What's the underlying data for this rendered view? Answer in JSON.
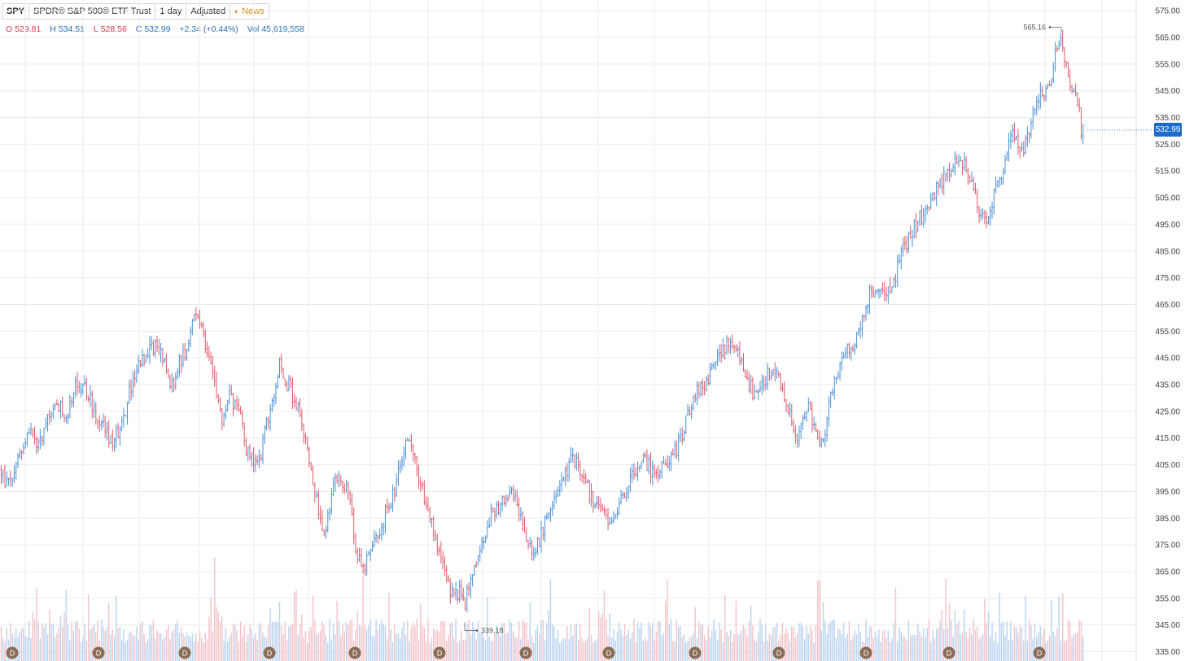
{
  "header": {
    "symbol": "SPY",
    "name": "SPDR® S&P 500® ETF Trust",
    "interval": "1 day",
    "adjust": "Adjusted",
    "news": "News"
  },
  "ohlc": {
    "o_label": "O",
    "o": "529.81",
    "h_label": "H",
    "h": "534.51",
    "l_label": "L",
    "l": "528.56",
    "c_label": "C",
    "c": "532.99",
    "change": "+2.34 (+0.44%)",
    "vol_label": "Vol",
    "vol": "45,619,558"
  },
  "colors": {
    "up": "#4a90d9",
    "down": "#e05a6a",
    "up_vol": "#b9d3f0",
    "down_vol": "#f4c2c8",
    "grid": "#ebebeb",
    "accent": "#1a6dcc"
  },
  "chart_data": {
    "type": "ohlc",
    "y_ticks": [
      575,
      565,
      555,
      545,
      535,
      525,
      515,
      505,
      495,
      485,
      475,
      465,
      455,
      445,
      435,
      425,
      415,
      405,
      395,
      385,
      375,
      365,
      355,
      345,
      335
    ],
    "y_tick_labels": [
      "575.00",
      "565.00",
      "555.00",
      "545.00",
      "535.00",
      "525.00",
      "515.00",
      "505.00",
      "495.00",
      "485.00",
      "475.00",
      "465.00",
      "455.00",
      "445.00",
      "435.00",
      "425.00",
      "415.00",
      "405.00",
      "395.00",
      "385.00",
      "375.00",
      "365.00",
      "355.00",
      "345.00",
      "335.00"
    ],
    "ylim": [
      331.5,
      579
    ],
    "last_price": "532.99",
    "high_note": "565.16",
    "low_note": "339.18",
    "event_marker": "D",
    "event_count": 13,
    "path": [
      [
        0,
        403
      ],
      [
        6,
        399
      ],
      [
        12,
        397
      ],
      [
        20,
        406
      ],
      [
        30,
        414
      ],
      [
        38,
        420
      ],
      [
        46,
        410
      ],
      [
        56,
        422
      ],
      [
        66,
        424
      ],
      [
        74,
        428
      ],
      [
        82,
        424
      ],
      [
        92,
        433
      ],
      [
        100,
        436
      ],
      [
        108,
        432
      ],
      [
        116,
        425
      ],
      [
        124,
        420
      ],
      [
        132,
        415
      ],
      [
        138,
        414
      ],
      [
        146,
        418
      ],
      [
        152,
        423
      ],
      [
        160,
        433
      ],
      [
        168,
        440
      ],
      [
        176,
        446
      ],
      [
        186,
        450
      ],
      [
        196,
        447
      ],
      [
        204,
        440
      ],
      [
        210,
        434
      ],
      [
        218,
        441
      ],
      [
        226,
        447
      ],
      [
        234,
        455
      ],
      [
        240,
        461
      ],
      [
        246,
        458
      ],
      [
        254,
        448
      ],
      [
        262,
        440
      ],
      [
        268,
        428
      ],
      [
        274,
        420
      ],
      [
        282,
        430
      ],
      [
        290,
        426
      ],
      [
        298,
        420
      ],
      [
        304,
        409
      ],
      [
        312,
        405
      ],
      [
        320,
        408
      ],
      [
        328,
        420
      ],
      [
        336,
        432
      ],
      [
        344,
        444
      ],
      [
        352,
        436
      ],
      [
        360,
        430
      ],
      [
        366,
        427
      ],
      [
        372,
        418
      ],
      [
        378,
        408
      ],
      [
        386,
        398
      ],
      [
        392,
        388
      ],
      [
        398,
        380
      ],
      [
        404,
        386
      ],
      [
        410,
        398
      ],
      [
        418,
        402
      ],
      [
        426,
        396
      ],
      [
        432,
        386
      ],
      [
        438,
        372
      ],
      [
        446,
        366
      ],
      [
        454,
        372
      ],
      [
        462,
        376
      ],
      [
        470,
        384
      ],
      [
        478,
        390
      ],
      [
        486,
        398
      ],
      [
        494,
        405
      ],
      [
        500,
        415
      ],
      [
        506,
        410
      ],
      [
        512,
        404
      ],
      [
        518,
        398
      ],
      [
        524,
        390
      ],
      [
        530,
        384
      ],
      [
        536,
        376
      ],
      [
        542,
        372
      ],
      [
        548,
        362
      ],
      [
        556,
        356
      ],
      [
        564,
        358
      ],
      [
        570,
        352
      ],
      [
        578,
        360
      ],
      [
        586,
        368
      ],
      [
        594,
        376
      ],
      [
        602,
        386
      ],
      [
        610,
        389
      ],
      [
        618,
        391
      ],
      [
        626,
        395
      ],
      [
        632,
        392
      ],
      [
        638,
        388
      ],
      [
        646,
        379
      ],
      [
        654,
        372
      ],
      [
        662,
        376
      ],
      [
        670,
        384
      ],
      [
        678,
        388
      ],
      [
        686,
        394
      ],
      [
        694,
        401
      ],
      [
        702,
        408
      ],
      [
        710,
        405
      ],
      [
        718,
        399
      ],
      [
        726,
        393
      ],
      [
        734,
        390
      ],
      [
        742,
        386
      ],
      [
        750,
        384
      ],
      [
        758,
        388
      ],
      [
        766,
        393
      ],
      [
        774,
        400
      ],
      [
        782,
        404
      ],
      [
        790,
        406
      ],
      [
        798,
        404
      ],
      [
        806,
        401
      ],
      [
        814,
        404
      ],
      [
        822,
        407
      ],
      [
        830,
        410
      ],
      [
        838,
        416
      ],
      [
        846,
        424
      ],
      [
        852,
        430
      ],
      [
        860,
        433
      ],
      [
        868,
        436
      ],
      [
        876,
        440
      ],
      [
        884,
        446
      ],
      [
        892,
        450
      ],
      [
        900,
        450
      ],
      [
        908,
        446
      ],
      [
        914,
        440
      ],
      [
        920,
        436
      ],
      [
        926,
        431
      ],
      [
        932,
        434
      ],
      [
        940,
        438
      ],
      [
        946,
        440
      ],
      [
        954,
        438
      ],
      [
        962,
        434
      ],
      [
        968,
        426
      ],
      [
        974,
        420
      ],
      [
        980,
        416
      ],
      [
        986,
        420
      ],
      [
        994,
        428
      ],
      [
        1000,
        420
      ],
      [
        1006,
        410
      ],
      [
        1012,
        416
      ],
      [
        1018,
        426
      ],
      [
        1024,
        434
      ],
      [
        1030,
        442
      ],
      [
        1036,
        446
      ],
      [
        1044,
        448
      ],
      [
        1052,
        452
      ],
      [
        1058,
        456
      ],
      [
        1064,
        464
      ],
      [
        1070,
        470
      ],
      [
        1078,
        472
      ],
      [
        1086,
        468
      ],
      [
        1094,
        472
      ],
      [
        1100,
        476
      ],
      [
        1108,
        484
      ],
      [
        1116,
        490
      ],
      [
        1124,
        494
      ],
      [
        1132,
        498
      ],
      [
        1140,
        502
      ],
      [
        1148,
        506
      ],
      [
        1156,
        510
      ],
      [
        1164,
        514
      ],
      [
        1172,
        518
      ],
      [
        1180,
        520
      ],
      [
        1188,
        516
      ],
      [
        1196,
        510
      ],
      [
        1204,
        500
      ],
      [
        1210,
        496
      ],
      [
        1216,
        500
      ],
      [
        1224,
        510
      ],
      [
        1232,
        516
      ],
      [
        1238,
        522
      ],
      [
        1244,
        528
      ],
      [
        1252,
        526
      ],
      [
        1258,
        522
      ],
      [
        1264,
        530
      ],
      [
        1270,
        538
      ],
      [
        1278,
        544
      ],
      [
        1286,
        546
      ],
      [
        1292,
        550
      ],
      [
        1298,
        560
      ],
      [
        1303,
        565
      ],
      [
        1308,
        558
      ],
      [
        1314,
        550
      ],
      [
        1320,
        545
      ],
      [
        1324,
        540
      ],
      [
        1326,
        537
      ],
      [
        1328,
        530
      ],
      [
        1332,
        533
      ]
    ]
  }
}
